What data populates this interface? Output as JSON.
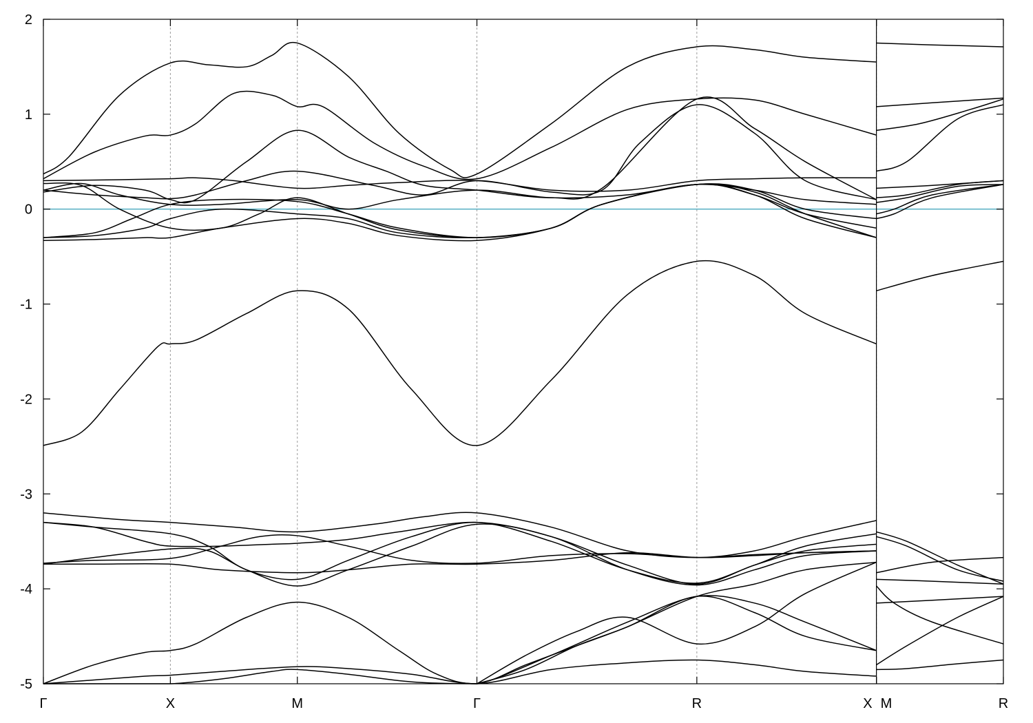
{
  "chart_data": {
    "type": "line",
    "title": "",
    "xlabel": "",
    "ylabel": "",
    "ylim": [
      -5,
      2
    ],
    "yticks": [
      -5,
      -4,
      -3,
      -2,
      -1,
      0,
      1,
      2
    ],
    "k_points": [
      {
        "label": "Γ",
        "x": 0
      },
      {
        "label": "X",
        "x": 0.5
      },
      {
        "label": "M",
        "x": 1.0
      },
      {
        "label": "Γ",
        "x": 1.7071
      },
      {
        "label": "R",
        "x": 2.5731
      },
      {
        "label": "X",
        "x": 3.2802
      },
      {
        "label": "M",
        "x": 3.2802
      },
      {
        "label": "R",
        "x": 3.7802
      }
    ],
    "xlim": [
      0,
      3.7802
    ],
    "path_break_at": 3.2802,
    "reference_line": {
      "y": 0,
      "color": "#5fb3c6"
    },
    "bands": [
      {
        "segment": 1,
        "x": [
          0,
          0.1,
          0.3,
          0.5,
          0.65,
          0.8,
          0.9,
          1.0,
          1.2,
          1.4,
          1.6,
          1.7071,
          2.0,
          2.3,
          2.5731,
          2.8,
          3.0,
          3.2802
        ],
        "y": [
          0.37,
          0.55,
          1.2,
          1.54,
          1.52,
          1.5,
          1.62,
          1.75,
          1.4,
          0.8,
          0.42,
          0.37,
          0.9,
          1.5,
          1.71,
          1.68,
          1.6,
          1.55
        ]
      },
      {
        "segment": 1,
        "x": [
          0,
          0.2,
          0.4,
          0.5,
          0.6,
          0.75,
          0.9,
          1.0,
          1.1,
          1.3,
          1.5,
          1.7071,
          2.0,
          2.3,
          2.5731,
          2.8,
          3.0,
          3.2802
        ],
        "y": [
          0.32,
          0.6,
          0.77,
          0.78,
          0.9,
          1.22,
          1.2,
          1.08,
          1.08,
          0.7,
          0.45,
          0.32,
          0.65,
          1.05,
          1.16,
          1.15,
          1.0,
          0.78
        ]
      },
      {
        "segment": 1,
        "x": [
          0,
          0.3,
          0.5,
          0.6,
          0.75,
          1.0,
          1.2,
          1.4,
          1.7071,
          2.0,
          2.3,
          2.5731,
          2.8,
          3.0,
          3.2802
        ],
        "y": [
          0.3,
          0.31,
          0.32,
          0.33,
          0.3,
          0.22,
          0.25,
          0.28,
          0.3,
          0.2,
          0.2,
          0.3,
          0.32,
          0.33,
          0.33
        ]
      },
      {
        "segment": 1,
        "x": [
          0,
          0.2,
          0.4,
          0.5,
          0.6,
          0.8,
          1.0,
          1.3,
          1.5,
          1.7071,
          2.0,
          2.2,
          2.35,
          2.5731,
          2.8,
          3.0,
          3.2802
        ],
        "y": [
          0.2,
          0.15,
          0.12,
          0.11,
          0.15,
          0.3,
          0.4,
          0.25,
          0.15,
          0.3,
          0.18,
          0.2,
          0.7,
          1.1,
          0.8,
          0.3,
          0.1
        ]
      },
      {
        "segment": 1,
        "x": [
          0,
          0.2,
          0.4,
          0.5,
          0.6,
          0.8,
          1.0,
          1.2,
          1.35,
          1.5,
          1.7071,
          2.0,
          2.2,
          2.5731,
          2.8,
          3.0,
          3.2802
        ],
        "y": [
          0.18,
          0.25,
          0.2,
          0.1,
          0.1,
          0.5,
          0.83,
          0.55,
          0.4,
          0.25,
          0.2,
          0.12,
          0.22,
          1.16,
          0.85,
          0.5,
          0.1
        ]
      },
      {
        "segment": 1,
        "x": [
          0,
          0.15,
          0.3,
          0.5,
          0.7,
          1.0,
          1.2,
          1.4,
          1.7071,
          2.0,
          2.3,
          2.5731,
          2.8,
          3.0,
          3.2802
        ],
        "y": [
          0.2,
          0.27,
          0.15,
          0.05,
          0.05,
          0.1,
          0.0,
          0.1,
          0.2,
          0.12,
          0.15,
          0.26,
          0.2,
          0.1,
          0.05
        ]
      },
      {
        "segment": 1,
        "x": [
          0,
          0.15,
          0.3,
          0.5,
          0.7,
          0.85,
          1.0,
          1.2,
          1.4,
          1.7071,
          2.0,
          2.2,
          2.5731,
          2.8,
          3.0,
          3.2802
        ],
        "y": [
          0.27,
          0.25,
          0.0,
          -0.2,
          -0.2,
          -0.05,
          0.12,
          -0.05,
          -0.22,
          -0.3,
          -0.2,
          0.05,
          0.26,
          0.15,
          -0.05,
          -0.2
        ]
      },
      {
        "segment": 1,
        "x": [
          0,
          0.2,
          0.35,
          0.5,
          0.7,
          1.0,
          1.2,
          1.4,
          1.7071,
          2.0,
          2.2,
          2.5731,
          2.8,
          3.0,
          3.2802
        ],
        "y": [
          -0.3,
          -0.25,
          -0.1,
          0.05,
          0.1,
          0.08,
          -0.05,
          -0.2,
          -0.3,
          -0.2,
          0.05,
          0.26,
          0.2,
          0.0,
          -0.1
        ]
      },
      {
        "segment": 1,
        "x": [
          0,
          0.2,
          0.4,
          0.5,
          0.7,
          1.0,
          1.2,
          1.4,
          1.7071,
          2.0,
          2.2,
          2.5731,
          2.8,
          3.0,
          3.2802
        ],
        "y": [
          -0.3,
          -0.28,
          -0.2,
          -0.1,
          0.0,
          -0.05,
          -0.1,
          -0.25,
          -0.3,
          -0.2,
          0.05,
          0.26,
          0.18,
          -0.05,
          -0.3
        ]
      },
      {
        "segment": 1,
        "x": [
          0,
          0.2,
          0.4,
          0.5,
          0.7,
          1.0,
          1.2,
          1.4,
          1.7071,
          2.0,
          2.2,
          2.5731,
          2.8,
          3.0,
          3.2802
        ],
        "y": [
          -0.33,
          -0.32,
          -0.3,
          -0.3,
          -0.2,
          -0.1,
          -0.15,
          -0.28,
          -0.33,
          -0.2,
          0.05,
          0.26,
          0.15,
          -0.1,
          -0.3
        ]
      },
      {
        "segment": 1,
        "x": [
          0,
          0.15,
          0.3,
          0.45,
          0.5,
          0.6,
          0.8,
          1.0,
          1.2,
          1.45,
          1.7071,
          2.0,
          2.3,
          2.5731,
          2.8,
          3.0,
          3.2802
        ],
        "y": [
          -2.49,
          -2.35,
          -1.9,
          -1.45,
          -1.42,
          -1.38,
          -1.1,
          -0.86,
          -1.05,
          -1.9,
          -2.49,
          -1.8,
          -0.9,
          -0.55,
          -0.7,
          -1.1,
          -1.42
        ]
      },
      {
        "segment": 1,
        "x": [
          0,
          0.3,
          0.5,
          0.75,
          1.0,
          1.3,
          1.5,
          1.7071,
          2.0,
          2.3,
          2.5731,
          2.8,
          3.0,
          3.2802
        ],
        "y": [
          -3.2,
          -3.27,
          -3.3,
          -3.35,
          -3.4,
          -3.32,
          -3.24,
          -3.2,
          -3.35,
          -3.6,
          -3.67,
          -3.6,
          -3.45,
          -3.28
        ]
      },
      {
        "segment": 1,
        "x": [
          0,
          0.2,
          0.5,
          0.65,
          0.8,
          1.0,
          1.2,
          1.45,
          1.7071,
          2.0,
          2.3,
          2.5731,
          2.8,
          3.0,
          3.2802
        ],
        "y": [
          -3.3,
          -3.35,
          -3.42,
          -3.55,
          -3.8,
          -3.9,
          -3.7,
          -3.45,
          -3.3,
          -3.5,
          -3.8,
          -3.94,
          -3.75,
          -3.55,
          -3.42
        ]
      },
      {
        "segment": 1,
        "x": [
          0,
          0.2,
          0.4,
          0.5,
          0.7,
          0.9,
          1.0,
          1.2,
          1.4,
          1.7071,
          2.0,
          2.3,
          2.5731,
          2.8,
          3.0,
          3.2802
        ],
        "y": [
          -3.3,
          -3.35,
          -3.5,
          -3.55,
          -3.55,
          -3.53,
          -3.52,
          -3.48,
          -3.4,
          -3.3,
          -3.45,
          -3.75,
          -3.95,
          -3.75,
          -3.6,
          -3.53
        ]
      },
      {
        "segment": 1,
        "x": [
          0,
          0.2,
          0.5,
          0.65,
          0.8,
          1.0,
          1.2,
          1.45,
          1.7071,
          2.0,
          2.3,
          2.5731,
          2.8,
          3.0,
          3.2802
        ],
        "y": [
          -3.74,
          -3.67,
          -3.58,
          -3.6,
          -3.8,
          -3.97,
          -3.8,
          -3.55,
          -3.32,
          -3.45,
          -3.8,
          -3.96,
          -3.8,
          -3.65,
          -3.6
        ]
      },
      {
        "segment": 1,
        "x": [
          0,
          0.2,
          0.5,
          0.7,
          0.85,
          1.0,
          1.2,
          1.45,
          1.7071,
          2.0,
          2.3,
          2.5731,
          2.8,
          3.0,
          3.2802
        ],
        "y": [
          -3.73,
          -3.7,
          -3.68,
          -3.55,
          -3.45,
          -3.44,
          -3.55,
          -3.7,
          -3.73,
          -3.65,
          -3.63,
          -3.67,
          -3.64,
          -3.62,
          -3.6
        ]
      },
      {
        "segment": 1,
        "x": [
          0,
          0.2,
          0.5,
          0.7,
          1.0,
          1.2,
          1.45,
          1.7071,
          2.0,
          2.3,
          2.5731,
          2.8,
          3.0,
          3.2802
        ],
        "y": [
          -3.74,
          -3.74,
          -3.74,
          -3.8,
          -3.83,
          -3.8,
          -3.74,
          -3.74,
          -3.7,
          -3.62,
          -3.67,
          -3.65,
          -3.62,
          -3.6
        ]
      },
      {
        "segment": 1,
        "x": [
          0,
          0.2,
          0.4,
          0.5,
          0.6,
          0.8,
          1.0,
          1.2,
          1.4,
          1.55,
          1.7071,
          2.0,
          2.3,
          2.5731,
          2.8,
          3.0,
          3.2802
        ],
        "y": [
          -5.0,
          -4.8,
          -4.67,
          -4.65,
          -4.58,
          -4.3,
          -4.14,
          -4.3,
          -4.65,
          -4.9,
          -5.0,
          -4.7,
          -4.35,
          -4.08,
          -4.15,
          -4.35,
          -4.65
        ]
      },
      {
        "segment": 1,
        "x": [
          0,
          0.2,
          0.4,
          0.5,
          0.7,
          1.0,
          1.2,
          1.45,
          1.7071,
          2.0,
          2.3,
          2.5731,
          2.8,
          3.0,
          3.2802
        ],
        "y": [
          -5.0,
          -4.96,
          -4.92,
          -4.91,
          -4.87,
          -4.82,
          -4.84,
          -4.9,
          -5.0,
          -4.85,
          -4.78,
          -4.75,
          -4.8,
          -4.87,
          -4.92
        ]
      },
      {
        "segment": 1,
        "x": [
          0,
          0.3,
          0.5,
          0.7,
          0.9,
          1.0,
          1.2,
          1.45,
          1.7071,
          1.9,
          2.1,
          2.3,
          2.5731,
          2.8,
          3.0,
          3.2802
        ],
        "y": [
          -5.0,
          -5.0,
          -5.0,
          -4.95,
          -4.87,
          -4.85,
          -4.9,
          -4.98,
          -5.0,
          -4.8,
          -4.6,
          -4.4,
          -4.08,
          -3.95,
          -3.8,
          -3.72
        ]
      },
      {
        "segment": 1,
        "x": [
          1.7071,
          1.9,
          2.1,
          2.3,
          2.5731,
          2.8,
          3.0,
          3.2802
        ],
        "y": [
          -5.0,
          -4.85,
          -4.6,
          -4.4,
          -4.08,
          -4.25,
          -4.5,
          -4.65
        ]
      },
      {
        "segment": 1,
        "x": [
          1.7071,
          1.9,
          2.1,
          2.3,
          2.5731,
          2.8,
          3.0,
          3.2802
        ],
        "y": [
          -5.0,
          -4.7,
          -4.45,
          -4.3,
          -4.58,
          -4.4,
          -4.05,
          -3.72
        ]
      },
      {
        "segment": 2,
        "x": [
          3.2802,
          3.5,
          3.7802
        ],
        "y": [
          1.75,
          1.73,
          1.71
        ]
      },
      {
        "segment": 2,
        "x": [
          3.2802,
          3.5,
          3.7802
        ],
        "y": [
          1.08,
          1.12,
          1.17
        ]
      },
      {
        "segment": 2,
        "x": [
          3.2802,
          3.45,
          3.65,
          3.7802
        ],
        "y": [
          0.83,
          0.9,
          1.05,
          1.16
        ]
      },
      {
        "segment": 2,
        "x": [
          3.2802,
          3.4,
          3.6,
          3.7802
        ],
        "y": [
          0.4,
          0.5,
          0.95,
          1.1
        ]
      },
      {
        "segment": 2,
        "x": [
          3.2802,
          3.5,
          3.7802
        ],
        "y": [
          0.22,
          0.25,
          0.3
        ]
      },
      {
        "segment": 2,
        "x": [
          3.2802,
          3.4,
          3.6,
          3.7802
        ],
        "y": [
          0.12,
          0.15,
          0.26,
          0.3
        ]
      },
      {
        "segment": 2,
        "x": [
          3.2802,
          3.4,
          3.6,
          3.7802
        ],
        "y": [
          0.07,
          0.12,
          0.24,
          0.26
        ]
      },
      {
        "segment": 2,
        "x": [
          3.2802,
          3.35,
          3.5,
          3.7802
        ],
        "y": [
          -0.05,
          0.0,
          0.15,
          0.26
        ]
      },
      {
        "segment": 2,
        "x": [
          3.2802,
          3.35,
          3.5,
          3.7802
        ],
        "y": [
          -0.1,
          -0.05,
          0.12,
          0.26
        ]
      },
      {
        "segment": 2,
        "x": [
          3.2802,
          3.5,
          3.7802
        ],
        "y": [
          -0.86,
          -0.7,
          -0.55
        ]
      },
      {
        "segment": 2,
        "x": [
          3.2802,
          3.4,
          3.6,
          3.7802
        ],
        "y": [
          -3.4,
          -3.5,
          -3.75,
          -3.95
        ]
      },
      {
        "segment": 2,
        "x": [
          3.2802,
          3.4,
          3.6,
          3.7802
        ],
        "y": [
          -3.45,
          -3.55,
          -3.8,
          -3.92
        ]
      },
      {
        "segment": 2,
        "x": [
          3.2802,
          3.5,
          3.7802
        ],
        "y": [
          -3.83,
          -3.72,
          -3.67
        ]
      },
      {
        "segment": 2,
        "x": [
          3.2802,
          3.5,
          3.7802
        ],
        "y": [
          -3.9,
          -3.92,
          -3.95
        ]
      },
      {
        "segment": 2,
        "x": [
          3.2802,
          3.5,
          3.7802
        ],
        "y": [
          -4.15,
          -4.12,
          -4.08
        ]
      },
      {
        "segment": 2,
        "x": [
          3.2802,
          3.35,
          3.5,
          3.7802
        ],
        "y": [
          -3.97,
          -4.15,
          -4.35,
          -4.58
        ]
      },
      {
        "segment": 2,
        "x": [
          3.2802,
          3.4,
          3.6,
          3.7802
        ],
        "y": [
          -4.85,
          -4.84,
          -4.79,
          -4.75
        ]
      },
      {
        "segment": 2,
        "x": [
          3.2802,
          3.4,
          3.6,
          3.7802
        ],
        "y": [
          -4.8,
          -4.6,
          -4.3,
          -4.08
        ]
      }
    ]
  }
}
